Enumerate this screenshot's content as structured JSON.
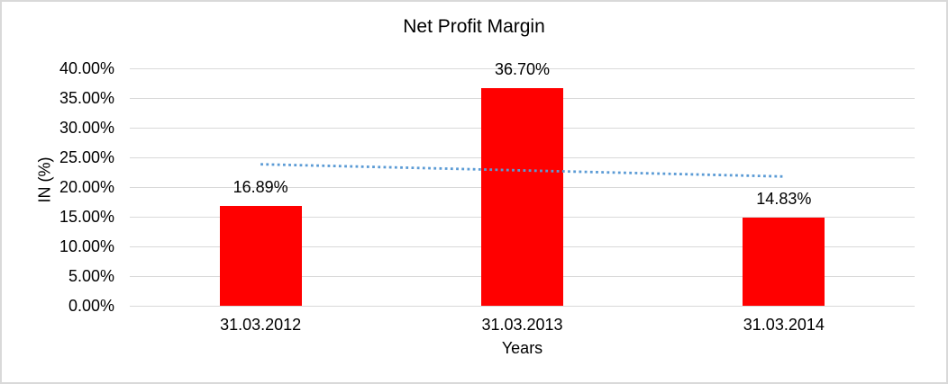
{
  "chart_data": {
    "type": "bar",
    "title": "Net Profit Margin",
    "xlabel": "Years",
    "ylabel": "IN (%)",
    "categories": [
      "31.03.2012",
      "31.03.2013",
      "31.03.2014"
    ],
    "values": [
      16.89,
      36.7,
      14.83
    ],
    "data_labels": [
      "16.89%",
      "36.70%",
      "14.83%"
    ],
    "ylim": [
      0,
      40
    ],
    "ytick_labels": [
      "0.00%",
      "5.00%",
      "10.00%",
      "15.00%",
      "20.00%",
      "25.00%",
      "30.00%",
      "35.00%",
      "40.00%"
    ],
    "grid": true,
    "legend": "none",
    "bar_color": "#FF0000",
    "gridline_color": "#D9D9D9",
    "axis_text_color": "#000000",
    "trendline": {
      "type": "linear",
      "style": "dotted",
      "color": "#5B9BD5"
    }
  }
}
